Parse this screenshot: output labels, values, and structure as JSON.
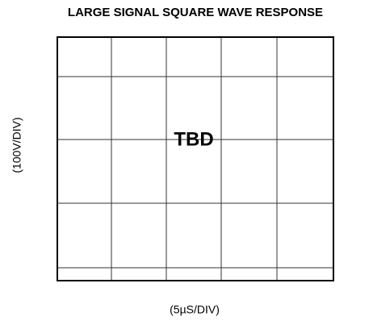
{
  "figure": {
    "title": "LARGE SIGNAL SQUARE WAVE RESPONSE",
    "y_label": "(100V/DIV)",
    "x_label": "(5µS/DIV)",
    "placeholder": "TBD"
  }
}
